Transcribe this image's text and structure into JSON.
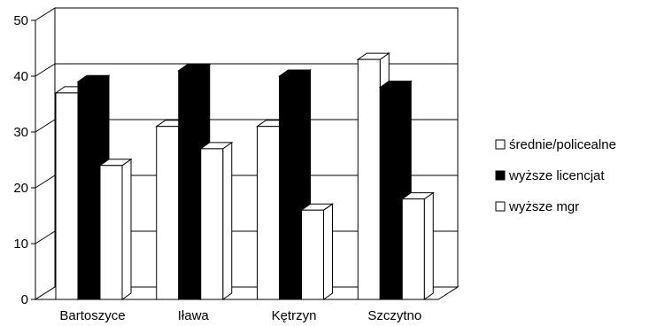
{
  "chart_data": {
    "type": "bar",
    "title": "",
    "xlabel": "",
    "ylabel": "",
    "categories": [
      "Bartoszyce",
      "Iława",
      "Kętrzyn",
      "Szczytno"
    ],
    "series": [
      {
        "name": "średnie/policealne",
        "values": [
          37,
          31,
          31,
          43
        ],
        "color": "#ffffff"
      },
      {
        "name": "wyższe licencjat",
        "values": [
          39,
          41,
          40,
          38
        ],
        "color": "#000000"
      },
      {
        "name": "wyższe mgr",
        "values": [
          24,
          27,
          16,
          18
        ],
        "color": "#ffffff"
      }
    ],
    "ylim": [
      0,
      50
    ],
    "yticks": [
      0,
      10,
      20,
      30,
      40,
      50
    ],
    "grid": true,
    "three_d": true,
    "legend_position": "right"
  }
}
